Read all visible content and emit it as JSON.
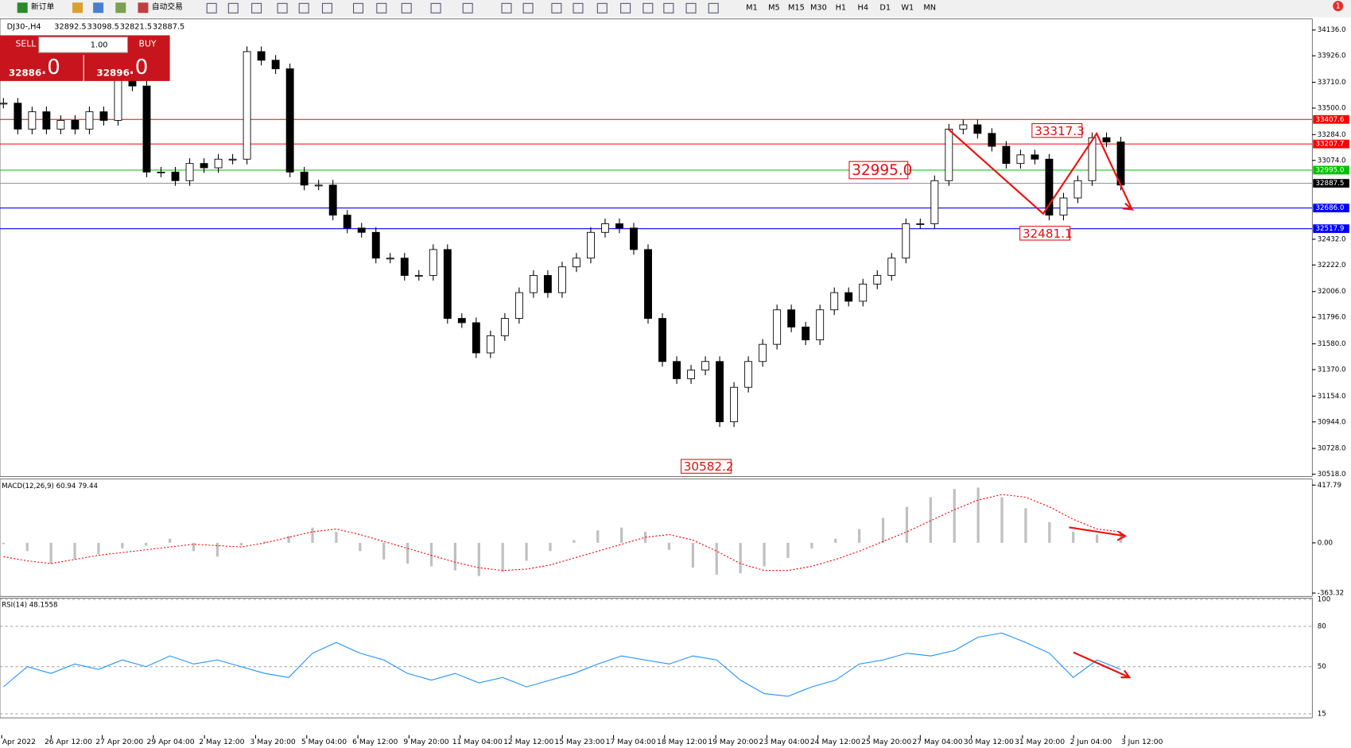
{
  "toolbar": {
    "new_order": "新订单",
    "auto_trade": "自动交易",
    "timeframes": [
      "M1",
      "M5",
      "M15",
      "M30",
      "H1",
      "H4",
      "D1",
      "W1",
      "MN"
    ],
    "badge": "1"
  },
  "header": {
    "symbol": "DJ30-,H4",
    "ohlc": [
      32892.5,
      33098.5,
      32821.5,
      32887.5
    ]
  },
  "trade_panel": {
    "sell": "SELL",
    "buy": "BUY",
    "lots": "1.00",
    "bid_main": "32886",
    "bid_tail": ".0",
    "ask_main": "32896",
    "ask_tail": ".0"
  },
  "chart_data": [
    {
      "type": "candlestick",
      "closes": [
        33540,
        33329,
        33470,
        33329,
        33400,
        33329,
        33470,
        33400,
        33750,
        33680,
        32979,
        32979,
        32909,
        33049,
        33014,
        33084,
        33084,
        33960,
        33890,
        33820,
        32979,
        32873,
        32873,
        32628,
        32523,
        32488,
        32278,
        32278,
        32137,
        32137,
        32348,
        31787,
        31752,
        31506,
        31646,
        31787,
        31997,
        32137,
        31997,
        32207,
        32278,
        32488,
        32558,
        32523,
        32348,
        31787,
        31436,
        31296,
        31366,
        31436,
        30945,
        31226,
        31436,
        31576,
        31857,
        31717,
        31612,
        31857,
        31997,
        31927,
        32067,
        32137,
        32278,
        32558,
        32558,
        32909,
        33329,
        33364,
        33294,
        33189,
        33049,
        33119,
        33084,
        32628,
        32768,
        32909,
        33259,
        33224,
        32873
      ],
      "ylim": [
        30499,
        34226
      ],
      "yticks": [
        {
          "value": 34136,
          "label": "34136.0"
        },
        {
          "value": 33926,
          "label": "33926.0"
        },
        {
          "value": 33710,
          "label": "33710.0"
        },
        {
          "value": 33500,
          "label": "33500.0"
        },
        {
          "value": 33284,
          "label": "33284.0"
        },
        {
          "value": 33074,
          "label": "33074.0"
        },
        {
          "value": 32432,
          "label": "32432.0"
        },
        {
          "value": 32222,
          "label": "32222.0"
        },
        {
          "value": 32006,
          "label": "32006.0"
        },
        {
          "value": 31796,
          "label": "31796.0"
        },
        {
          "value": 31580,
          "label": "31580.0"
        },
        {
          "value": 31370,
          "label": "31370.0"
        },
        {
          "value": 31154,
          "label": "31154.0"
        },
        {
          "value": 30944,
          "label": "30944.0"
        },
        {
          "value": 30728,
          "label": "30728.0"
        },
        {
          "value": 30518,
          "label": "30518.0"
        }
      ],
      "levels": [
        {
          "value": 33407.6,
          "label": "33407.6",
          "color": "#ff0000"
        },
        {
          "value": 33207.7,
          "label": "33207.7",
          "color": "#ff0000"
        },
        {
          "value": 32995,
          "label": "32995.0",
          "color": "#00c000"
        },
        {
          "value": 32887.5,
          "label": "32887.5",
          "color": "#000000"
        },
        {
          "value": 32686,
          "label": "32686.0",
          "color": "#0000ff"
        },
        {
          "value": 32517.9,
          "label": "32517.9",
          "color": "#0000ff"
        }
      ],
      "annotations": [
        33317.3,
        {
          "value": 32995,
          "label": "32995.0"
        },
        32481.1,
        30582.2
      ],
      "x_labels": [
        "Apr 2022",
        "26 Apr 12:00",
        "27 Apr 20:00",
        "29 Apr 04:00",
        "2 May 12:00",
        "3 May 20:00",
        "5 May 04:00",
        "6 May 12:00",
        "9 May 20:00",
        "11 May 04:00",
        "12 May 12:00",
        "15 May 23:00",
        "17 May 04:00",
        "18 May 12:00",
        "19 May 20:00",
        "23 May 04:00",
        "24 May 12:00",
        "25 May 20:00",
        "27 May 04:00",
        "30 May 12:00",
        "31 May 20:00",
        "2 Jun 04:00",
        "3 Jun 12:00"
      ]
    },
    {
      "type": "macd",
      "title": "MACD(12,26,9) 60.94 79.44",
      "ylim": [
        -387,
        461
      ],
      "yticks": [
        417.79,
        {
          "value": 0,
          "label": "0.00"
        },
        -363.32
      ],
      "series": [
        {
          "name": "MACD",
          "color": "#c0c0c0",
          "values": [
            -10,
            -60,
            -150,
            -120,
            -80,
            -40,
            -20,
            30,
            -60,
            -100,
            -20,
            10,
            50,
            110,
            80,
            -60,
            -120,
            -150,
            -170,
            -200,
            -240,
            -210,
            -130,
            -60,
            20,
            90,
            110,
            80,
            -50,
            -180,
            -230,
            -220,
            -170,
            -110,
            -40,
            30,
            100,
            180,
            260,
            330,
            390,
            400,
            330,
            250,
            150,
            80,
            60,
            70
          ]
        },
        {
          "name": "Signal",
          "color": "#ff0000",
          "values": [
            -100,
            -130,
            -150,
            -120,
            -90,
            -70,
            -50,
            -30,
            -10,
            -20,
            -30,
            0,
            40,
            80,
            100,
            60,
            10,
            -40,
            -90,
            -140,
            -180,
            -200,
            -190,
            -160,
            -110,
            -60,
            -10,
            40,
            60,
            20,
            -60,
            -150,
            -200,
            -200,
            -170,
            -120,
            -60,
            10,
            80,
            160,
            240,
            310,
            350,
            330,
            260,
            170,
            100,
            80
          ]
        }
      ]
    },
    {
      "type": "rsi",
      "title": "RSI(14) 48.1558",
      "ylim": [
        12,
        101
      ],
      "yticks": [
        100,
        80,
        50,
        15
      ],
      "series": [
        {
          "name": "RSI",
          "color": "#1e90ff",
          "values": [
            35,
            50,
            45,
            52,
            48,
            55,
            50,
            58,
            52,
            55,
            50,
            45,
            42,
            60,
            68,
            60,
            55,
            45,
            40,
            45,
            38,
            42,
            35,
            40,
            45,
            52,
            58,
            55,
            52,
            58,
            55,
            40,
            30,
            28,
            35,
            40,
            52,
            55,
            60,
            58,
            62,
            72,
            75,
            68,
            60,
            42,
            55,
            48
          ]
        }
      ]
    }
  ]
}
